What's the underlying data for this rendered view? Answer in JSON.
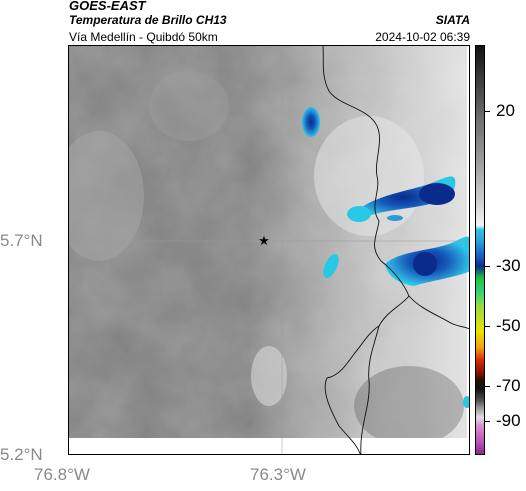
{
  "header": {
    "satellite": "GOES-EAST",
    "product": "Temperatura de Brillo CH13",
    "route": "Vía Medellín - Quibdó 50km",
    "organization": "SIATA",
    "timestamp": "2024-10-02 06:39"
  },
  "map": {
    "y_ticks": [
      "5.7°N",
      "5.2°N"
    ],
    "x_ticks": [
      "76.8°W",
      "76.3°W"
    ],
    "marker_icon": "star-icon"
  },
  "colorbar": {
    "ticks": [
      "20",
      "-30",
      "-50",
      "-70",
      "-90"
    ],
    "colors": {
      "warm_gray_dark": "#2a2a2a",
      "light_gray": "#e8e8e8",
      "cold_blue": "#1457b8",
      "cyan": "#28c8e6",
      "green": "#22c43a",
      "yellow": "#e8e400",
      "red": "#d62a0a",
      "magenta": "#c050b4"
    }
  }
}
